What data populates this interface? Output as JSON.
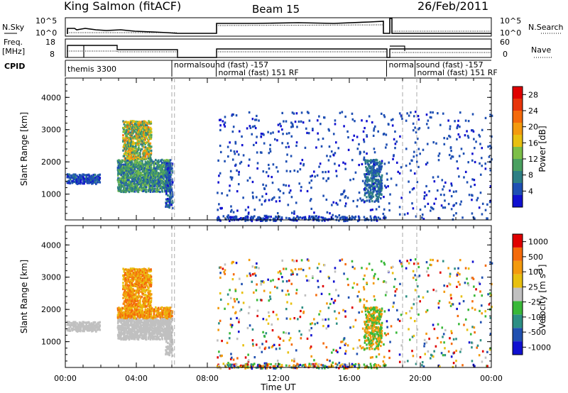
{
  "header": {
    "station": "King Salmon (fitACF)",
    "beam": "Beam 15",
    "date": "26/Feb/2011"
  },
  "strips": {
    "nsky_label": "N.Sky",
    "nsky_ticks": [
      "10^5",
      "10^0"
    ],
    "nsearch_label": "N.Search",
    "nsearch_ticks": [
      "10^5",
      "10^0"
    ],
    "freq_label_1": "Freq.",
    "freq_label_2": "[MHz]",
    "freq_ticks": [
      "18",
      "8"
    ],
    "nave_label": "Nave",
    "nave_ticks": [
      "60",
      "0"
    ],
    "cpid_label": "CPID",
    "cpid_segments": [
      {
        "label": "themis 3300",
        "start_hr": 0.0
      },
      {
        "label": "normalsound (fast) -157",
        "start_hr": 6.0
      },
      {
        "label": "normal (fast) 151 RF",
        "start_hr": 8.5
      },
      {
        "label": "normalsound (fast) -157",
        "start_hr": 18.1
      },
      {
        "label": "normal (fast) 151 RF",
        "start_hr": 19.7
      }
    ]
  },
  "chart_data": [
    {
      "type": "heatmap",
      "panel": "power",
      "xlabel": "Time UT",
      "ylabel": "Slant Range [km]",
      "xlim": [
        0,
        24
      ],
      "ylim": [
        200,
        4600
      ],
      "x_ticks": [
        "00:00",
        "04:00",
        "08:00",
        "12:00",
        "16:00",
        "20:00",
        "00:00"
      ],
      "y_ticks": [
        "1000",
        "2000",
        "3000",
        "4000"
      ],
      "colorbar": {
        "label": "Power [dB]",
        "ticks": [
          "4",
          "8",
          "12",
          "16",
          "20",
          "24",
          "28"
        ],
        "range": [
          0,
          30
        ],
        "colors": [
          "#1010d0",
          "#1e4fb3",
          "#2d7f84",
          "#4aa060",
          "#7cbf47",
          "#e8c010",
          "#f39a0e",
          "#f46a0a",
          "#e8340a",
          "#e00000"
        ]
      },
      "dashed_lines_hr": [
        6.0,
        6.15,
        19.0,
        19.8
      ],
      "scatter_regions": [
        {
          "t0": 0.05,
          "t1": 1.9,
          "r0": 1350,
          "r1": 1650,
          "v0": 2,
          "v1": 7,
          "density": 0.55
        },
        {
          "t0": 2.9,
          "t1": 5.9,
          "r0": 1100,
          "r1": 2100,
          "v0": 4,
          "v1": 14,
          "density": 0.6
        },
        {
          "t0": 3.2,
          "t1": 4.8,
          "r0": 2100,
          "r1": 3300,
          "v0": 6,
          "v1": 22,
          "density": 0.5
        },
        {
          "t0": 5.6,
          "t1": 6.0,
          "r0": 600,
          "r1": 2000,
          "v0": 2,
          "v1": 8,
          "density": 0.4
        },
        {
          "t0": 16.8,
          "t1": 17.8,
          "r0": 800,
          "r1": 2100,
          "v0": 3,
          "v1": 9,
          "density": 0.35
        },
        {
          "t0": 8.5,
          "t1": 24.0,
          "r0": 200,
          "r1": 3600,
          "v0": 2,
          "v1": 6,
          "density": 0.02
        },
        {
          "t0": 8.5,
          "t1": 18.0,
          "r0": 200,
          "r1": 350,
          "v0": 2,
          "v1": 6,
          "density": 0.25
        }
      ]
    },
    {
      "type": "heatmap",
      "panel": "velocity",
      "xlabel": "Time UT",
      "ylabel": "Slant Range [km]",
      "xlim": [
        0,
        24
      ],
      "ylim": [
        200,
        4600
      ],
      "x_ticks": [
        "00:00",
        "04:00",
        "08:00",
        "12:00",
        "16:00",
        "20:00",
        "00:00"
      ],
      "y_ticks": [
        "1000",
        "2000",
        "3000",
        "4000"
      ],
      "colorbar": {
        "label": "Velocity [m s^-1]",
        "ticks": [
          "1000",
          "500",
          "100",
          "25",
          "-25",
          "-100",
          "-500",
          "-1000"
        ],
        "colors": [
          "#1010d0",
          "#2050b0",
          "#2d8f84",
          "#39b839",
          "#c0c0c0",
          "#e8c010",
          "#f39a0e",
          "#f46a0a",
          "#e00000"
        ]
      },
      "dashed_lines_hr": [
        6.0,
        6.15,
        19.0,
        19.8
      ]
    }
  ]
}
